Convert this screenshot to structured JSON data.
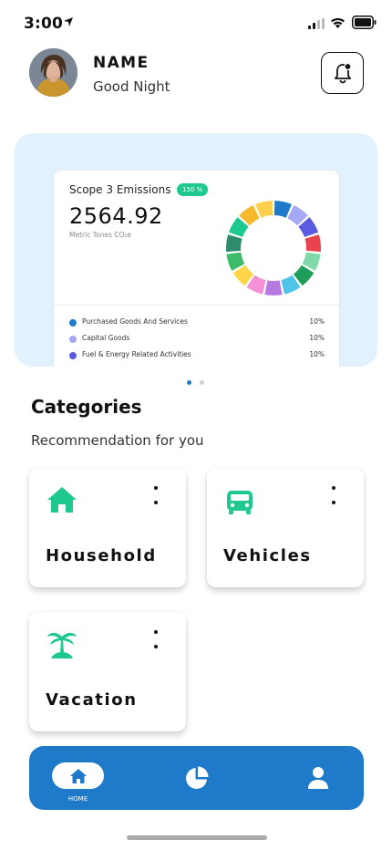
{
  "status_bar": {
    "time": "3:00"
  },
  "header": {
    "name": "NAME",
    "greeting": "Good Night"
  },
  "emissions_card": {
    "title": "Scope 3 Emissions",
    "badge": "150 %",
    "value": "2564.92",
    "unit": "Metric Tones CO₂e",
    "legend": [
      {
        "label": "Purchased Goods And Services",
        "percent": "10%",
        "color": "#1f7ac9"
      },
      {
        "label": "Capital Goods",
        "percent": "10%",
        "color": "#a4a8f5"
      },
      {
        "label": "Fuel & Energy Related Activities",
        "percent": "10%",
        "color": "#5b5be0"
      }
    ],
    "donut_colors": [
      "#1f7ac9",
      "#a4a8f5",
      "#5b5be0",
      "#e9444e",
      "#7fd9a8",
      "#1e9e5a",
      "#4fc3e8",
      "#b77ae0",
      "#f58fd6",
      "#ffd54a",
      "#3dbb6a",
      "#2e8b6e",
      "#1ec88f",
      "#f5b92e",
      "#ffcf4d"
    ]
  },
  "carousel": {
    "active_index": 0,
    "count": 2
  },
  "categories": {
    "title": "Categories",
    "subtitle": "Recommendation for you",
    "items": [
      {
        "label": "Household",
        "icon": "home-icon"
      },
      {
        "label": "Vehicles",
        "icon": "car-icon"
      },
      {
        "label": "Vacation",
        "icon": "palm-tree-icon"
      }
    ]
  },
  "bottom_nav": {
    "home_label": "HOME"
  },
  "colors": {
    "accent_blue": "#1f7ac9",
    "accent_green": "#1ec88f",
    "hero_bg": "#e1f1fd"
  }
}
